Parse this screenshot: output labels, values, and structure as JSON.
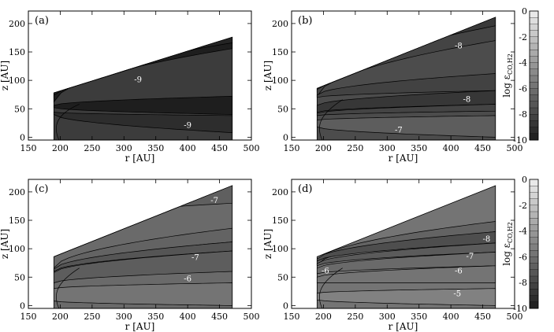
{
  "chart_data": [
    {
      "type": "contour",
      "panel_label": "(a)",
      "xlabel": "r [AU]",
      "ylabel": "z [AU]",
      "xlim": [
        150,
        500
      ],
      "ylim": [
        -5,
        222
      ],
      "x_ticks": [
        150,
        200,
        250,
        300,
        350,
        400,
        450,
        500
      ],
      "y_ticks": [
        0,
        50,
        100,
        150,
        200
      ],
      "domain": {
        "r_inner": 190,
        "r_outer": 470,
        "z_top_inner": 78,
        "z_top_outer": 176
      },
      "base_level": -8.5,
      "contour_labels": [
        {
          "r": 322,
          "z": 102,
          "text": "-9"
        },
        {
          "r": 400,
          "z": 22,
          "text": "-9"
        }
      ]
    },
    {
      "type": "contour",
      "panel_label": "(b)",
      "xlabel": "r [AU]",
      "ylabel": "z [AU]",
      "xlim": [
        150,
        500
      ],
      "ylim": [
        -5,
        222
      ],
      "x_ticks": [
        150,
        200,
        250,
        300,
        350,
        400,
        450,
        500
      ],
      "y_ticks": [
        0,
        50,
        100,
        150,
        200
      ],
      "domain": {
        "r_inner": 190,
        "r_outer": 470,
        "z_top_inner": 86,
        "z_top_outer": 211
      },
      "base_level": -7.7,
      "contour_labels": [
        {
          "r": 412,
          "z": 162,
          "text": "-8"
        },
        {
          "r": 425,
          "z": 68,
          "text": "-8"
        },
        {
          "r": 318,
          "z": 14,
          "text": "-7"
        }
      ]
    },
    {
      "type": "contour",
      "panel_label": "(c)",
      "xlabel": "r [AU]",
      "ylabel": "z [AU]",
      "xlim": [
        150,
        500
      ],
      "ylim": [
        -5,
        222
      ],
      "x_ticks": [
        150,
        200,
        250,
        300,
        350,
        400,
        450,
        500
      ],
      "y_ticks": [
        0,
        50,
        100,
        150,
        200
      ],
      "domain": {
        "r_inner": 190,
        "r_outer": 470,
        "z_top_inner": 86,
        "z_top_outer": 211
      },
      "base_level": -6.3,
      "contour_labels": [
        {
          "r": 442,
          "z": 186,
          "text": "-7"
        },
        {
          "r": 412,
          "z": 86,
          "text": "-7"
        },
        {
          "r": 400,
          "z": 48,
          "text": "-6"
        }
      ]
    },
    {
      "type": "contour",
      "panel_label": "(d)",
      "xlabel": "r [AU]",
      "ylabel": "z [AU]",
      "xlim": [
        150,
        500
      ],
      "ylim": [
        -5,
        222
      ],
      "x_ticks": [
        150,
        200,
        250,
        300,
        350,
        400,
        450,
        500
      ],
      "y_ticks": [
        0,
        50,
        100,
        150,
        200
      ],
      "domain": {
        "r_inner": 190,
        "r_outer": 470,
        "z_top_inner": 86,
        "z_top_outer": 211
      },
      "base_level": -5.8,
      "contour_labels": [
        {
          "r": 456,
          "z": 118,
          "text": "-8"
        },
        {
          "r": 430,
          "z": 88,
          "text": "-7"
        },
        {
          "r": 412,
          "z": 62,
          "text": "-6"
        },
        {
          "r": 203,
          "z": 62,
          "text": "-6"
        },
        {
          "r": 410,
          "z": 22,
          "text": "-5"
        }
      ]
    }
  ],
  "colorbars": [
    {
      "label": "log ε",
      "label_sub": "CO,H2",
      "range": [
        -10,
        0
      ],
      "ticks": [
        0,
        -2,
        -4,
        -6,
        -8,
        -10
      ]
    },
    {
      "label": "log ε",
      "label_sub": "CO,H2",
      "range": [
        -10,
        0
      ],
      "ticks": [
        0,
        -2,
        -4,
        -6,
        -8,
        -10
      ]
    }
  ]
}
